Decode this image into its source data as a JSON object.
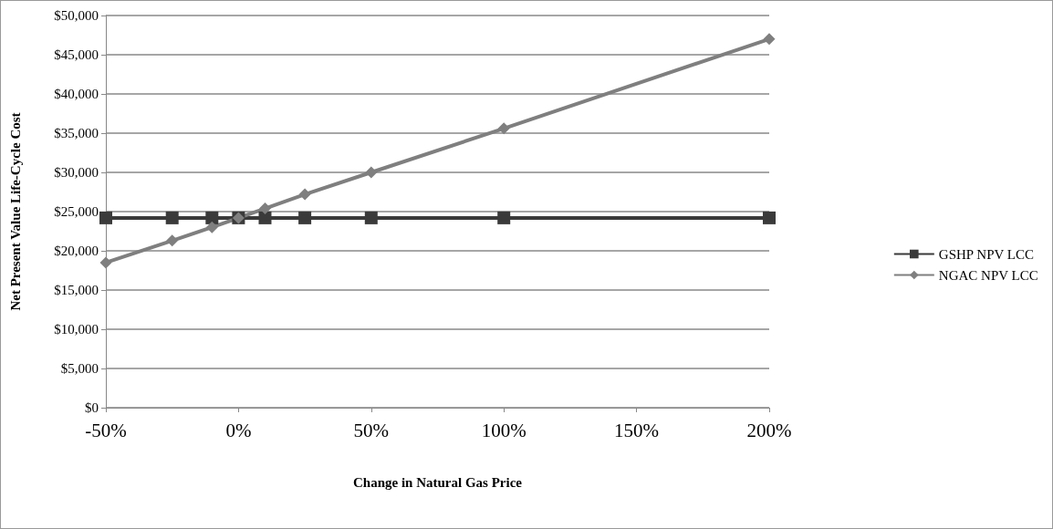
{
  "chart_data": {
    "type": "line",
    "xlabel": "Change in Natural Gas Price",
    "ylabel": "Net Present Value Life-Cycle Cost",
    "x": [
      -50,
      -25,
      -10,
      0,
      10,
      25,
      50,
      100,
      200
    ],
    "xlim": [
      -50,
      200
    ],
    "xticks": [
      {
        "value": -50,
        "label": "-50%"
      },
      {
        "value": 0,
        "label": "0%"
      },
      {
        "value": 50,
        "label": "50%"
      },
      {
        "value": 100,
        "label": "100%"
      },
      {
        "value": 150,
        "label": "150%"
      },
      {
        "value": 200,
        "label": "200%"
      }
    ],
    "ylim": [
      0,
      50000
    ],
    "yticks": [
      {
        "value": 0,
        "label": "$0"
      },
      {
        "value": 5000,
        "label": "$5,000"
      },
      {
        "value": 10000,
        "label": "$10,000"
      },
      {
        "value": 15000,
        "label": "$15,000"
      },
      {
        "value": 20000,
        "label": "$20,000"
      },
      {
        "value": 25000,
        "label": "$25,000"
      },
      {
        "value": 30000,
        "label": "$30,000"
      },
      {
        "value": 35000,
        "label": "$35,000"
      },
      {
        "value": 40000,
        "label": "$40,000"
      },
      {
        "value": 45000,
        "label": "$45,000"
      },
      {
        "value": 50000,
        "label": "$50,000"
      }
    ],
    "series": [
      {
        "name": "GSHP NPV LCC",
        "color": "#3a3a3a",
        "marker": "square",
        "values": [
          24200,
          24200,
          24200,
          24200,
          24200,
          24200,
          24200,
          24200,
          24200
        ]
      },
      {
        "name": "NGAC NPV LCC",
        "color": "#7f7f7f",
        "marker": "diamond",
        "values": [
          18500,
          21300,
          23000,
          24200,
          25400,
          27200,
          30000,
          35600,
          47000
        ]
      }
    ],
    "grid": "y",
    "legend": "right"
  }
}
